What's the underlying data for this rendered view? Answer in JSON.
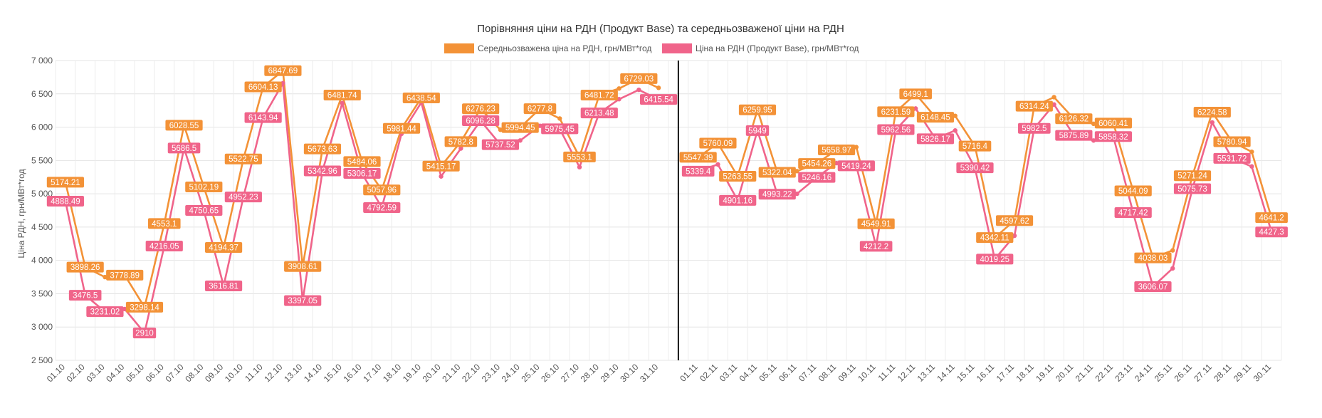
{
  "chart_data": {
    "type": "line",
    "title": "Порівняння ціни на РДН (Продукт Base) та середньозваженої ціни на РДН",
    "ylabel": "Ціна РДН, грн/МВт*год",
    "xlabel": "",
    "ylim": [
      2500,
      7000
    ],
    "y_ticks": [
      2500,
      3000,
      3500,
      4000,
      4500,
      5000,
      5500,
      6000,
      6500,
      7000
    ],
    "y_tick_labels": [
      "2 500",
      "3 000",
      "3 500",
      "4 000",
      "4 500",
      "5 000",
      "5 500",
      "6 000",
      "6 500",
      "7 000"
    ],
    "grid": true,
    "legend": "top-center",
    "categories": [
      "01.10",
      "02.10",
      "03.10",
      "04.10",
      "05.10",
      "06.10",
      "07.10",
      "08.10",
      "09.10",
      "10.10",
      "11.10",
      "12.10",
      "13.10",
      "14.10",
      "15.10",
      "16.10",
      "17.10",
      "18.10",
      "19.10",
      "20.10",
      "21.10",
      "22.10",
      "23.10",
      "24.10",
      "25.10",
      "26.10",
      "27.10",
      "28.10",
      "29.10",
      "30.10",
      "31.10",
      "",
      "01.11",
      "02.11",
      "03.11",
      "04.11",
      "05.11",
      "06.11",
      "07.11",
      "08.11",
      "09.11",
      "10.11",
      "11.11",
      "12.11",
      "13.11",
      "14.11",
      "15.11",
      "16.11",
      "17.11",
      "18.11",
      "19.11",
      "20.11",
      "21.11",
      "22.11",
      "23.11",
      "24.11",
      "25.11",
      "26.11",
      "27.11",
      "28.11",
      "29.11",
      "30.11"
    ],
    "separator_after_index": 30,
    "series": [
      {
        "name": "Середньозважена ціна на РДН, грн/МВт*год",
        "color": "#f39237",
        "values": [
          5174.21,
          3898.26,
          3750,
          3778.89,
          3298.14,
          4553.1,
          6028.55,
          5102.19,
          4194.37,
          5522.75,
          6604.13,
          6847.69,
          3908.61,
          5673.63,
          6481.74,
          5484.06,
          5057.96,
          5981.44,
          6438.54,
          5415.17,
          5782.8,
          6276.23,
          5960,
          5994.45,
          6277.8,
          6130,
          5553.1,
          6481.72,
          6580,
          6729.03,
          6590,
          null,
          5547.39,
          5760.09,
          5263.55,
          6259.95,
          5322.04,
          5340,
          5454.26,
          5658.97,
          5700,
          4549.91,
          6231.59,
          6499.1,
          6148.45,
          6170,
          5716.4,
          4342.11,
          4597.62,
          6314.24,
          6450,
          6126.32,
          6050,
          6060.41,
          5044.09,
          4038.03,
          4150,
          5271.24,
          6224.58,
          5780.94,
          5630,
          4641.2
        ],
        "labels": [
          "5174.21",
          "3898.26",
          "",
          "3778.89",
          "3298.14",
          "4553.1",
          "6028.55",
          "5102.19",
          "4194.37",
          "5522.75",
          "6604.13",
          "6847.69",
          "3908.61",
          "5673.63",
          "6481.74",
          "5484.06",
          "5057.96",
          "5981.44",
          "6438.54",
          "5415.17",
          "5782.8",
          "6276.23",
          "",
          "5994.45",
          "6277.8",
          "",
          "5553.1",
          "6481.72",
          "",
          "6729.03",
          "",
          "",
          "5547.39",
          "5760.09",
          "5263.55",
          "6259.95",
          "5322.04",
          "",
          "5454.26",
          "5658.97",
          "",
          "4549.91",
          "6231.59",
          "6499.1",
          "6148.45",
          "",
          "5716.4",
          "4342.11",
          "4597.62",
          "6314.24",
          "",
          "6126.32",
          "",
          "6060.41",
          "5044.09",
          "4038.03",
          "",
          "5271.24",
          "6224.58",
          "5780.94",
          "",
          "4641.2"
        ]
      },
      {
        "name": "Ціна на РДН (Продукт Base), грн/МВт*год",
        "color": "#f0648a",
        "values": [
          4888.49,
          3476.5,
          3231.02,
          3270,
          2910,
          4216.05,
          5686.5,
          4750.65,
          3616.81,
          4952.23,
          6143.94,
          6660,
          3397.05,
          5342.96,
          6360,
          5306.17,
          4792.59,
          5900,
          6370,
          5260,
          5680,
          6096.28,
          5737.52,
          5800,
          6020,
          5975.45,
          5400,
          6213.48,
          6420,
          6560,
          6415.54,
          null,
          5339.4,
          5440,
          4901.16,
          5949,
          4993.22,
          5000,
          5246.16,
          5460,
          5419.24,
          4212.2,
          5962.56,
          6280,
          5826.17,
          5950,
          5390.42,
          4019.25,
          4370,
          5982.5,
          6340,
          5875.89,
          5800,
          5858.32,
          4717.42,
          3606.07,
          3880,
          5075.73,
          6070,
          5531.72,
          5410,
          4427.3
        ],
        "labels": [
          "4888.49",
          "3476.5",
          "3231.02",
          "",
          "2910",
          "4216.05",
          "5686.5",
          "4750.65",
          "3616.81",
          "4952.23",
          "6143.94",
          "",
          "3397.05",
          "5342.96",
          "",
          "5306.17",
          "4792.59",
          "",
          "",
          "",
          "",
          "6096.28",
          "5737.52",
          "",
          "",
          "5975.45",
          "",
          "6213.48",
          "",
          "",
          "6415.54",
          "",
          "5339.4",
          "",
          "4901.16",
          "5949",
          "4993.22",
          "",
          "5246.16",
          "",
          "5419.24",
          "4212.2",
          "5962.56",
          "",
          "5826.17",
          "",
          "5390.42",
          "4019.25",
          "",
          "5982.5",
          "",
          "5875.89",
          "",
          "5858.32",
          "4717.42",
          "3606.07",
          "",
          "5075.73",
          "",
          "5531.72",
          "",
          "4427.3"
        ]
      }
    ]
  }
}
